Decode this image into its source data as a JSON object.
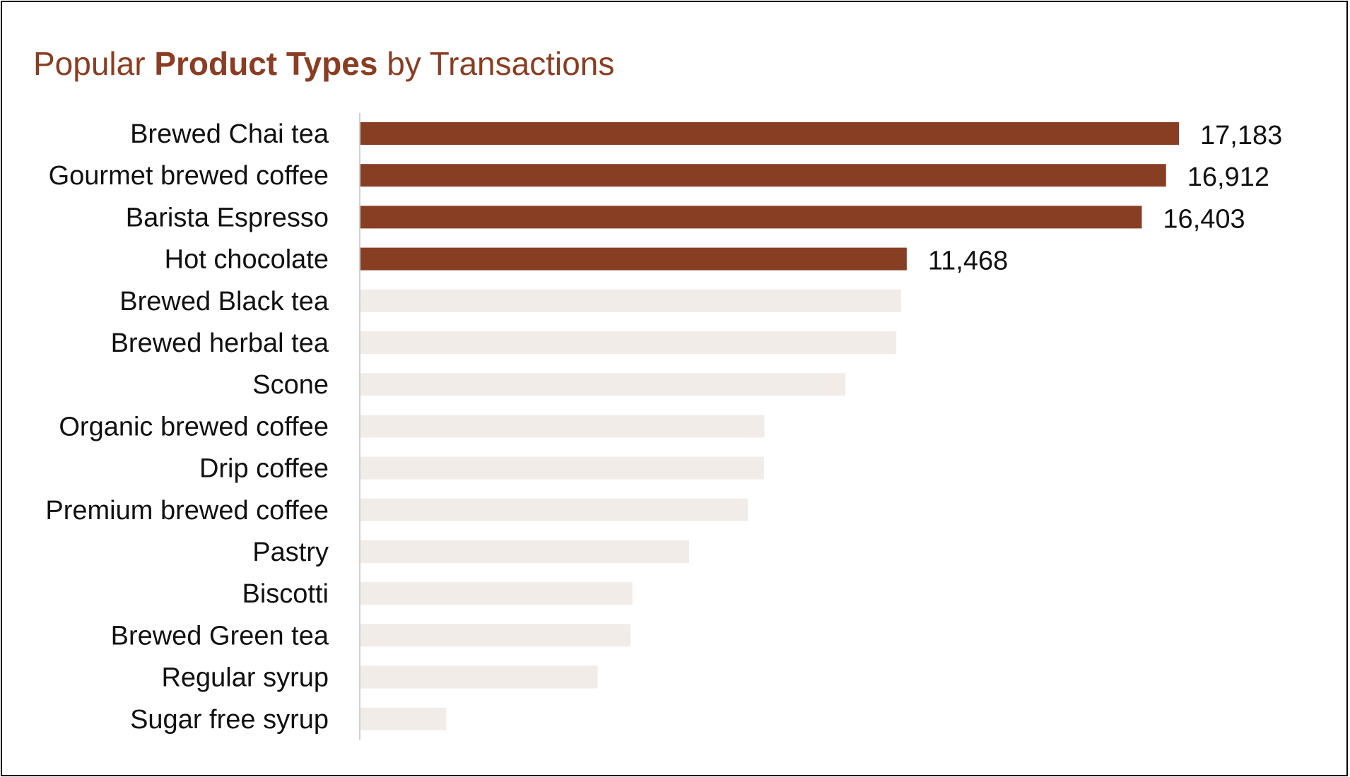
{
  "title": {
    "part1": "Popular ",
    "part2": "Product Types",
    "part3": " by Transactions"
  },
  "colors": {
    "highlight": "#873e23",
    "muted": "#f1ece8",
    "title": "#8a3d22",
    "axis": "#d0d0d0"
  },
  "chart_data": {
    "type": "bar",
    "orientation": "horizontal",
    "title": "Popular Product Types by Transactions",
    "categories": [
      "Brewed Chai tea",
      "Gourmet brewed coffee",
      "Barista Espresso",
      "Hot chocolate",
      "Brewed Black tea",
      "Brewed herbal tea",
      "Scone",
      "Organic brewed coffee",
      "Drip coffee",
      "Premium brewed coffee",
      "Pastry",
      "Biscotti",
      "Brewed Green tea",
      "Regular syrup",
      "Sugar free syrup"
    ],
    "values": [
      17183,
      16912,
      16403,
      11468,
      11350,
      11250,
      10180,
      8480,
      8470,
      8130,
      6900,
      5710,
      5670,
      4980,
      1800
    ],
    "highlighted": [
      true,
      true,
      true,
      true,
      false,
      false,
      false,
      false,
      false,
      false,
      false,
      false,
      false,
      false,
      false
    ],
    "data_labels": [
      "17,183",
      "16,912",
      "16,403",
      "11,468",
      "",
      "",
      "",
      "",
      "",
      "",
      "",
      "",
      "",
      "",
      ""
    ],
    "xlim": [
      0,
      17183
    ],
    "xlabel": "",
    "ylabel": "",
    "grid": false,
    "legend": "none"
  }
}
